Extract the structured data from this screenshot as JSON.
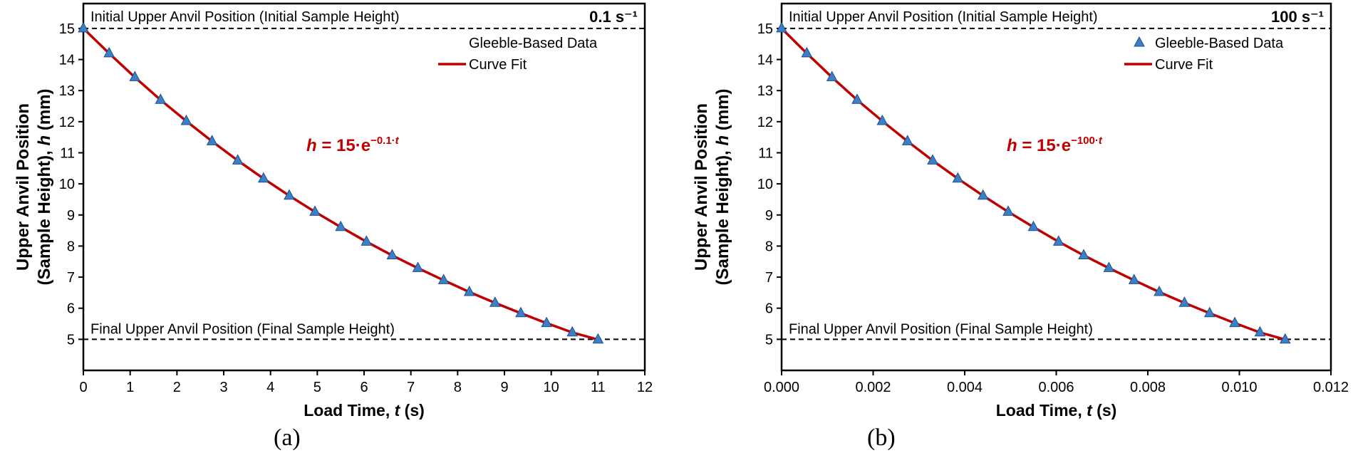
{
  "colors": {
    "marker": "#3d7fc4",
    "marker_edge": "#1f4f8a",
    "fit": "#c00000",
    "text": "#000000"
  },
  "chart_data": [
    {
      "type": "scatter",
      "panel_label": "(a)",
      "rate_label": "0.1 s⁻¹",
      "xlabel": "Load Time, ",
      "xlabel_var": "t",
      "xlabel_unit": " (s)",
      "ylabel_line1": "Upper Anvil Position",
      "ylabel_line2": "(Sample Height), ",
      "ylabel_var": "h",
      "ylabel_unit": " (mm)",
      "xlim": [
        0,
        12
      ],
      "ylim": [
        4,
        15.8
      ],
      "xticks": [
        "0",
        "1",
        "2",
        "3",
        "4",
        "5",
        "6",
        "7",
        "8",
        "9",
        "10",
        "11",
        "12"
      ],
      "xtick_values": [
        0,
        1,
        2,
        3,
        4,
        5,
        6,
        7,
        8,
        9,
        10,
        11,
        12
      ],
      "yticks": [
        "5",
        "6",
        "7",
        "8",
        "9",
        "10",
        "11",
        "12",
        "13",
        "14",
        "15"
      ],
      "ytick_values": [
        5,
        6,
        7,
        8,
        9,
        10,
        11,
        12,
        13,
        14,
        15
      ],
      "top_ref_label": "Initial Upper Anvil Position (Initial Sample Height)",
      "top_ref_value": 15,
      "bottom_ref_label": "Final Upper Anvil Position (Final Sample Height)",
      "bottom_ref_value": 5,
      "legend": {
        "data": "Gleeble-Based Data",
        "fit": "Curve Fit"
      },
      "equation": {
        "var": "h",
        "eq": " = 15·e",
        "exp": "−0.1·",
        "exp_var": "t"
      },
      "t_end": 11,
      "series": [
        {
          "name": "Gleeble-Based Data",
          "x": [
            0,
            0.55,
            1.1,
            1.65,
            2.2,
            2.75,
            3.3,
            3.85,
            4.4,
            4.95,
            5.5,
            6.05,
            6.6,
            7.15,
            7.7,
            8.25,
            8.8,
            9.35,
            9.9,
            10.45,
            11
          ],
          "y": [
            15,
            14.2,
            13.43,
            12.7,
            12.02,
            11.37,
            10.75,
            10.17,
            9.62,
            9.1,
            8.61,
            8.14,
            7.7,
            7.29,
            6.9,
            6.52,
            6.17,
            5.84,
            5.52,
            5.22,
            4.99
          ]
        },
        {
          "name": "Curve Fit",
          "model": "15*exp(-k*t)",
          "k": 0.1
        }
      ]
    },
    {
      "type": "scatter",
      "panel_label": "(b)",
      "rate_label": "100 s⁻¹",
      "xlabel": "Load Time, ",
      "xlabel_var": "t",
      "xlabel_unit": " (s)",
      "ylabel_line1": "Upper Anvil Position",
      "ylabel_line2": "(Sample Height), ",
      "ylabel_var": "h",
      "ylabel_unit": " (mm)",
      "xlim": [
        0,
        0.012
      ],
      "ylim": [
        4,
        15.8
      ],
      "xticks": [
        "0.000",
        "0.002",
        "0.004",
        "0.006",
        "0.008",
        "0.010",
        "0.012"
      ],
      "xtick_values": [
        0,
        0.002,
        0.004,
        0.006,
        0.008,
        0.01,
        0.012
      ],
      "yticks": [
        "5",
        "6",
        "7",
        "8",
        "9",
        "10",
        "11",
        "12",
        "13",
        "14",
        "15"
      ],
      "ytick_values": [
        5,
        6,
        7,
        8,
        9,
        10,
        11,
        12,
        13,
        14,
        15
      ],
      "top_ref_label": "Initial Upper Anvil Position (Initial Sample Height)",
      "top_ref_value": 15,
      "bottom_ref_label": "Final Upper Anvil Position (Final Sample Height)",
      "bottom_ref_value": 5,
      "legend": {
        "data": "Gleeble-Based Data",
        "fit": "Curve Fit"
      },
      "equation": {
        "var": "h",
        "eq": " = 15·e",
        "exp": "−100·",
        "exp_var": "t"
      },
      "t_end": 0.011,
      "series": [
        {
          "name": "Gleeble-Based Data",
          "x": [
            0,
            0.00055,
            0.0011,
            0.00165,
            0.0022,
            0.00275,
            0.0033,
            0.00385,
            0.0044,
            0.00495,
            0.0055,
            0.00605,
            0.0066,
            0.00715,
            0.0077,
            0.00825,
            0.0088,
            0.00935,
            0.0099,
            0.01045,
            0.011
          ],
          "y": [
            15,
            14.2,
            13.43,
            12.7,
            12.02,
            11.37,
            10.75,
            10.17,
            9.62,
            9.1,
            8.61,
            8.14,
            7.7,
            7.29,
            6.9,
            6.52,
            6.17,
            5.84,
            5.52,
            5.22,
            4.99
          ]
        },
        {
          "name": "Curve Fit",
          "model": "15*exp(-k*t)",
          "k": 100
        }
      ]
    }
  ]
}
